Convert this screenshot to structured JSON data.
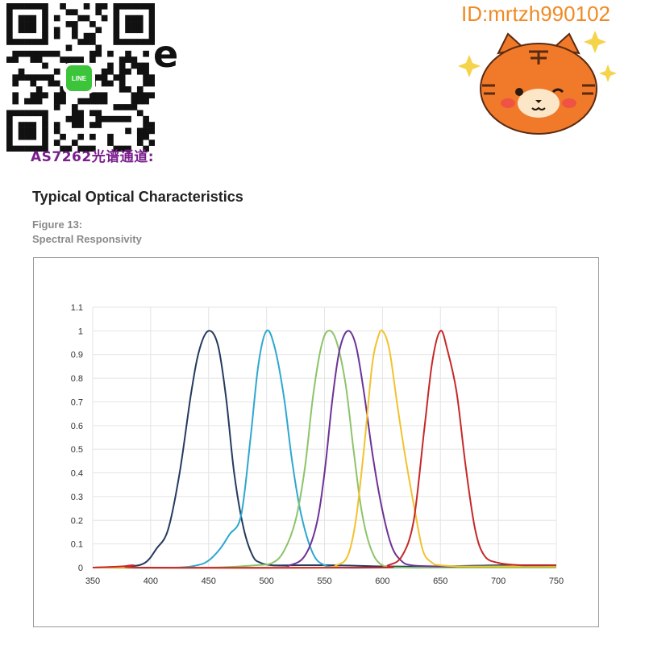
{
  "header": {
    "qr_badge_text": "LINE",
    "stray_text": "e",
    "channel_label": "AS7262光谱通道:",
    "watermark_id": "ID:mrtzh990102"
  },
  "section_title": "Typical Optical Characteristics",
  "figure": {
    "number": "Figure 13:",
    "caption": "Spectral Responsivity"
  },
  "colors": {
    "qr_badge": "#3cc43a",
    "watermark": "#f08a24",
    "mascot_fill": "#f07a2a",
    "sparkle": "#f5d34a"
  },
  "chart_data": {
    "type": "line",
    "title": "",
    "xlabel": "",
    "ylabel": "",
    "xlim": [
      350,
      750
    ],
    "ylim": [
      0,
      1.1
    ],
    "x_ticks": [
      "350",
      "400",
      "450",
      "500",
      "550",
      "600",
      "650",
      "700",
      "750"
    ],
    "y_ticks": [
      "0",
      "0.1",
      "0.2",
      "0.3",
      "0.4",
      "0.5",
      "0.6",
      "0.7",
      "0.8",
      "0.9",
      "1",
      "1.1"
    ],
    "grid": true,
    "legend": "none",
    "series": [
      {
        "color": "#243a5e",
        "x": [
          350,
          380,
          395,
          405,
          415,
          425,
          435,
          442,
          450,
          458,
          465,
          472,
          480,
          488,
          495,
          505,
          520,
          560,
          600,
          650,
          700,
          750
        ],
        "y": [
          0.0,
          0.005,
          0.02,
          0.08,
          0.16,
          0.4,
          0.74,
          0.92,
          1.0,
          0.94,
          0.72,
          0.4,
          0.17,
          0.05,
          0.02,
          0.01,
          0.01,
          0.01,
          0.005,
          0.005,
          0.01,
          0.01
        ]
      },
      {
        "color": "#2ea7d0",
        "x": [
          350,
          420,
          440,
          450,
          460,
          468,
          478,
          486,
          493,
          500,
          507,
          515,
          522,
          530,
          540,
          550,
          565,
          600,
          650,
          700,
          750
        ],
        "y": [
          0.0,
          0.0,
          0.01,
          0.03,
          0.08,
          0.14,
          0.22,
          0.54,
          0.86,
          1.0,
          0.93,
          0.72,
          0.45,
          0.22,
          0.06,
          0.01,
          0.0,
          0.0,
          0.0,
          0.0,
          0.0
        ]
      },
      {
        "color": "#8cc46a",
        "x": [
          350,
          450,
          490,
          505,
          515,
          525,
          533,
          540,
          547,
          553,
          560,
          568,
          575,
          582,
          590,
          600,
          620,
          650,
          700,
          750
        ],
        "y": [
          0.0,
          0.0,
          0.01,
          0.02,
          0.07,
          0.2,
          0.42,
          0.72,
          0.93,
          1.0,
          0.96,
          0.78,
          0.5,
          0.24,
          0.08,
          0.01,
          0.0,
          0.0,
          0.0,
          0.0
        ]
      },
      {
        "color": "#6d3296",
        "x": [
          350,
          500,
          520,
          533,
          543,
          550,
          557,
          563,
          570,
          577,
          584,
          592,
          600,
          608,
          616,
          625,
          650,
          700,
          750
        ],
        "y": [
          0.0,
          0.0,
          0.01,
          0.05,
          0.18,
          0.4,
          0.72,
          0.92,
          1.0,
          0.94,
          0.74,
          0.46,
          0.24,
          0.09,
          0.03,
          0.01,
          0.005,
          0.005,
          0.005
        ]
      },
      {
        "color": "#f2c22e",
        "x": [
          350,
          540,
          560,
          570,
          577,
          584,
          591,
          596,
          600,
          606,
          613,
          620,
          628,
          635,
          643,
          650,
          670,
          700,
          750
        ],
        "y": [
          0.0,
          0.0,
          0.01,
          0.05,
          0.2,
          0.5,
          0.85,
          0.97,
          1.0,
          0.92,
          0.68,
          0.46,
          0.24,
          0.07,
          0.02,
          0.01,
          0.005,
          0.005,
          0.005
        ]
      },
      {
        "color": "#c62828",
        "x": [
          350,
          375,
          385,
          395,
          590,
          605,
          617,
          627,
          636,
          643,
          650,
          656,
          664,
          672,
          680,
          688,
          700,
          720,
          750
        ],
        "y": [
          0.0,
          0.005,
          0.01,
          0.0,
          0.0,
          0.01,
          0.05,
          0.2,
          0.58,
          0.87,
          1.0,
          0.92,
          0.74,
          0.42,
          0.16,
          0.05,
          0.02,
          0.01,
          0.01
        ]
      }
    ]
  }
}
